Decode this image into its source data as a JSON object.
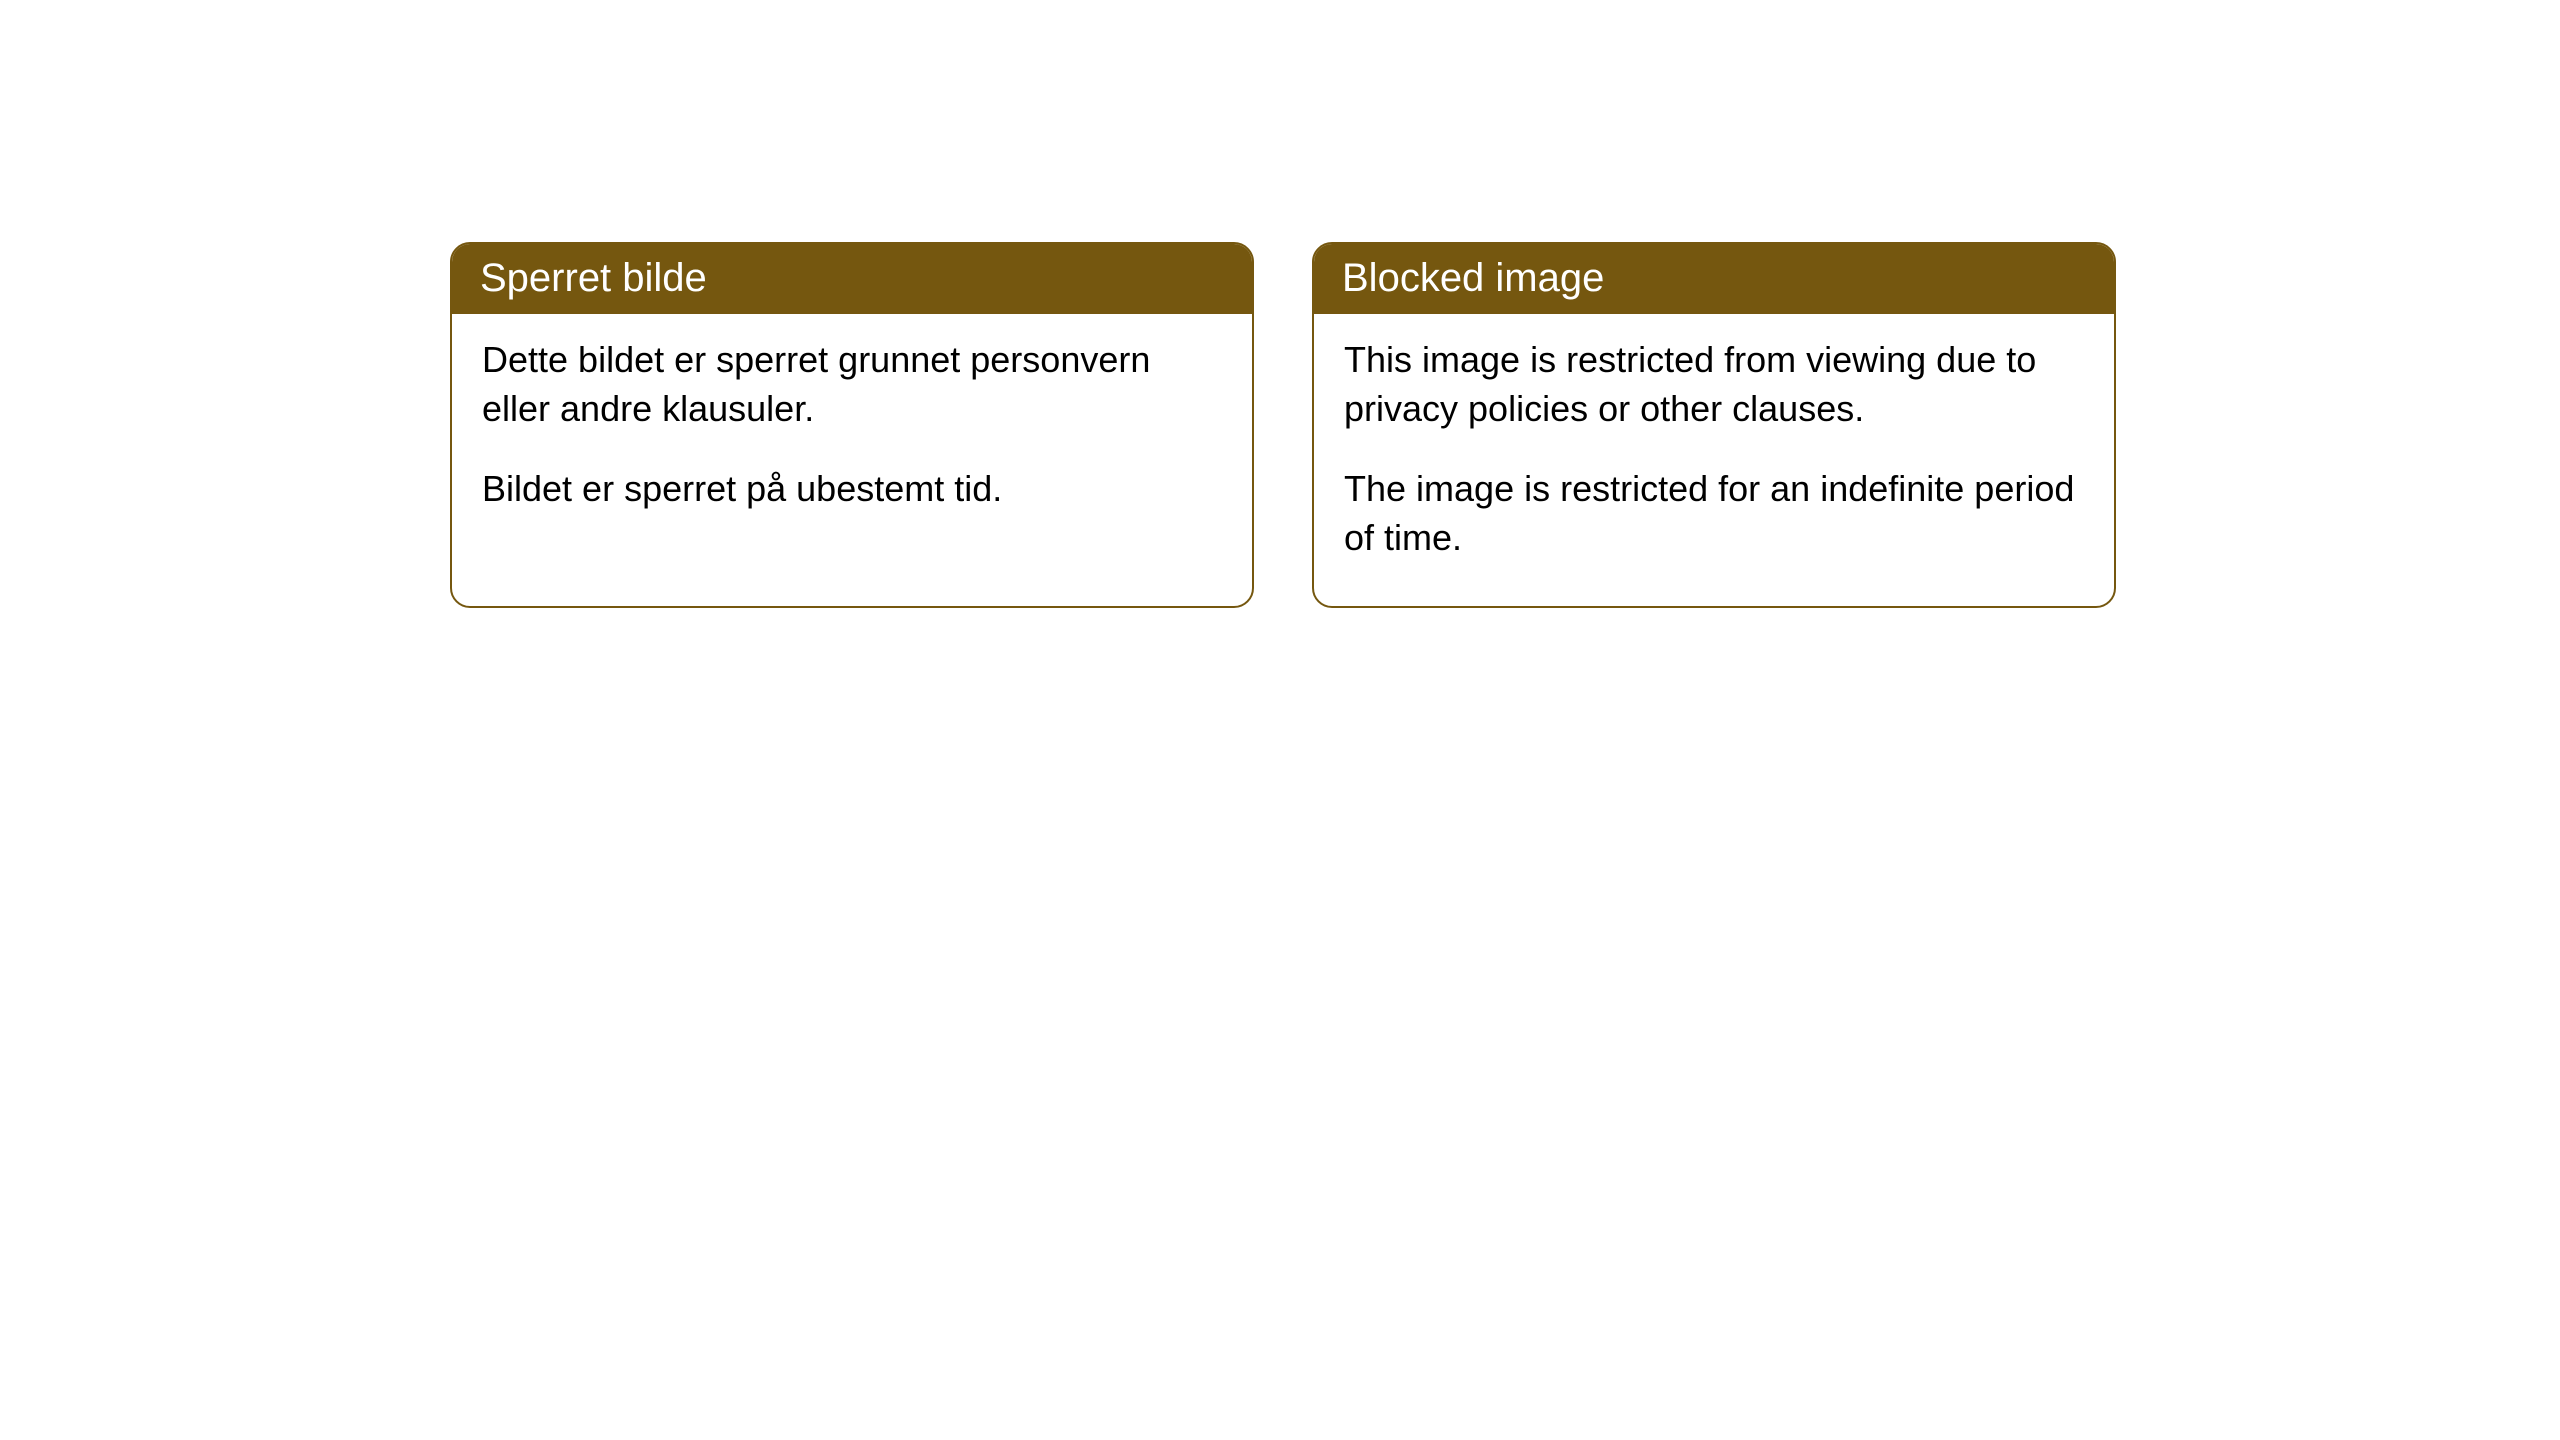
{
  "cards": [
    {
      "title": "Sperret bilde",
      "paragraph1": "Dette bildet er sperret grunnet personvern eller andre klausuler.",
      "paragraph2": "Bildet er sperret på ubestemt tid."
    },
    {
      "title": "Blocked image",
      "paragraph1": "This image is restricted from viewing due to privacy policies or other clauses.",
      "paragraph2": "The image is restricted for an indefinite period of time."
    }
  ],
  "styling": {
    "header_background": "#75570f",
    "header_text_color": "#ffffff",
    "border_color": "#75570f",
    "body_background": "#ffffff",
    "body_text_color": "#000000",
    "border_radius": 20,
    "header_fontsize": 40,
    "body_fontsize": 36
  }
}
